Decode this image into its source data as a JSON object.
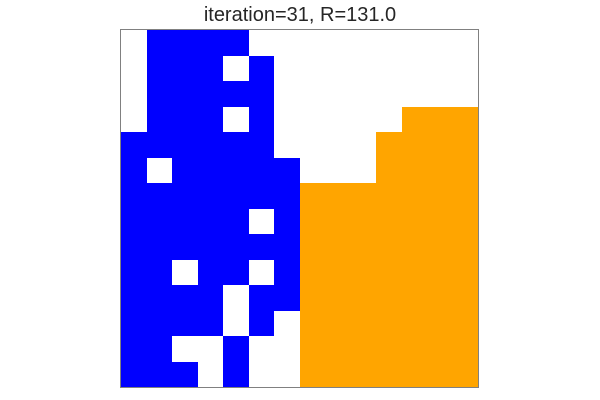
{
  "title": "iteration=31, R=131.0",
  "grid": {
    "rows": 14,
    "cols": 14,
    "palette": {
      ".": "#ffffff",
      "B": "#0000ff",
      "O": "#ffa500"
    },
    "cells": [
      ".BBBB.........",
      ".BBB.B........",
      ".BBBBB........",
      ".BBB.B.....OOO",
      "BBBBBB....OOOO",
      "B.BBBBB...OOOO",
      "BBBBBBBOOOOOOO",
      "BBBBB.BOOOOOOO",
      "BBBBBBBOOOOOOO",
      "BB.BB.BOOOOOOO",
      "BBBB.BBOOOOOOO",
      "BBBB.B.OOOOOOO",
      "BB..B..OOOOOOO",
      "BBB.B..OOOOOOO"
    ]
  }
}
